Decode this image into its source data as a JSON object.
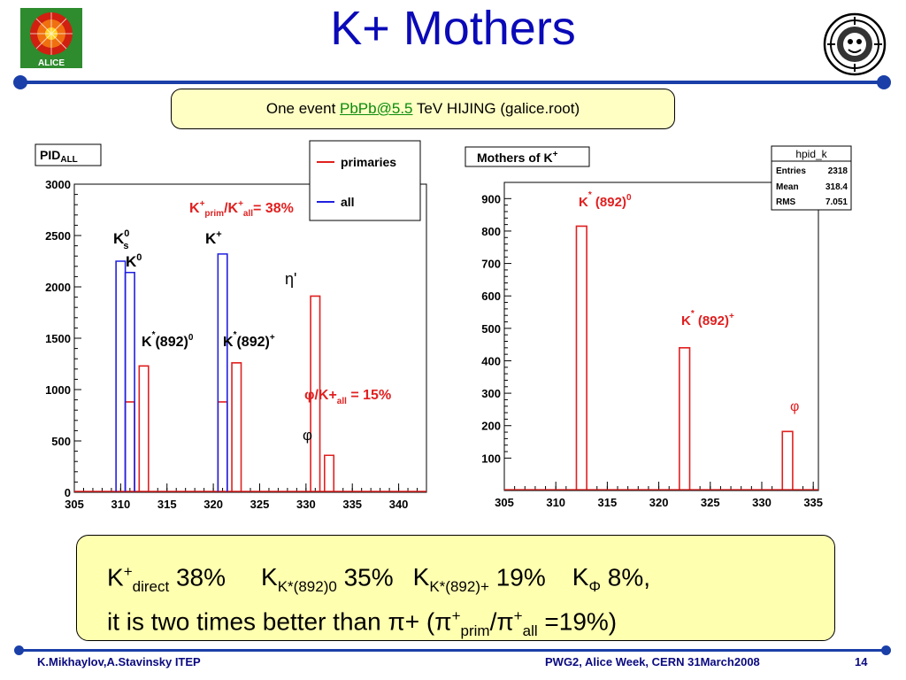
{
  "slide": {
    "title": "K+ Mothers",
    "subtitle_pre": "One event ",
    "subtitle_link": "PbPb@5.5",
    "subtitle_post": " TeV HIJING (galice.root)",
    "logo_left": "ALICE",
    "summary": {
      "l1a": "K",
      "l1b": "+",
      "l1c": "direct",
      "l1d": " 38%",
      "l1e": "K",
      "l1f": "K*(892)0",
      "l1g": " 35%",
      "l1h": "K",
      "l1i": "K*(892)+",
      "l1j": " 19%",
      "l1k": "K",
      "l1l": "Φ",
      "l1m": " 8%,",
      "l2a": "it is two times better than π+ (π",
      "l2b": "+",
      "l2c": "prim",
      "l2d": "/π",
      "l2e": "+",
      "l2f": "all",
      "l2g": " =19%)"
    },
    "footer_left": "K.Mikhaylov,A.Stavinsky ITEP",
    "footer_mid": "PWG2, Alice Week, CERN 31March2008",
    "footer_page": "14",
    "colors": {
      "title": "#0a0ab8",
      "rule": "#1a3fa8",
      "primaries": "#e02020",
      "all": "#2020e0",
      "box": "#ffffc4"
    }
  },
  "chart_data": [
    {
      "type": "bar",
      "title": "PID",
      "title_sub": "ALL",
      "xlim": [
        305,
        343
      ],
      "ylim": [
        0,
        3000
      ],
      "xticks": [
        "305",
        "310",
        "315",
        "320",
        "325",
        "330",
        "335",
        "340"
      ],
      "yticks": [
        "0",
        "500",
        "1000",
        "1500",
        "2000",
        "2500",
        "3000"
      ],
      "legend": {
        "primaries": "primaries",
        "all": "all"
      },
      "series": [
        {
          "name": "primaries",
          "bins": [
            [
              310.5,
              311.5,
              880
            ],
            [
              312,
              313,
              1230
            ],
            [
              320.5,
              321.5,
              880
            ],
            [
              322,
              323,
              1260
            ],
            [
              330.5,
              331.5,
              1910
            ],
            [
              332,
              333,
              360
            ]
          ]
        },
        {
          "name": "all",
          "bins": [
            [
              309.5,
              310.5,
              2250
            ],
            [
              310.5,
              311.5,
              2140
            ],
            [
              320.5,
              321.5,
              2320
            ]
          ]
        }
      ],
      "annotations": {
        "ratio_a": "K",
        "ratio_b": "+",
        "ratio_c": "prim",
        "ratio_d": "/K",
        "ratio_e": "+",
        "ratio_f": "all",
        "ratio_g": "= 38%",
        "ks_a": "K",
        "ks_b": "0",
        "ks_c": "s",
        "k0_a": "K",
        "k0_b": "0",
        "kp_a": "K",
        "kp_b": "+",
        "ks0_a": "K",
        "ks0_b": "*",
        "ks0_c": "(892)",
        "ks0_d": "0",
        "ksp_a": "K",
        "ksp_b": "*",
        "ksp_c": "(892)",
        "ksp_d": "+",
        "eta": "η'",
        "phi_a": "φ/K+",
        "phi_b": "all",
        "phi_c": " = 15%",
        "phi": "φ"
      }
    },
    {
      "type": "bar",
      "title": "Mothers of K",
      "title_sup": "+",
      "xlim": [
        305,
        335.5
      ],
      "ylim": [
        0,
        950
      ],
      "xticks": [
        "305",
        "310",
        "315",
        "320",
        "325",
        "330",
        "335"
      ],
      "yticks": [
        "100",
        "200",
        "300",
        "400",
        "500",
        "600",
        "700",
        "800",
        "900"
      ],
      "stats": {
        "name": "hpid_k",
        "entries_label": "Entries",
        "entries": "2318",
        "mean_label": "Mean",
        "mean": "318.4",
        "rms_label": "RMS",
        "rms": "7.051"
      },
      "series": [
        {
          "name": "",
          "bins": [
            [
              312,
              313,
              815
            ],
            [
              322,
              323,
              440
            ],
            [
              332,
              333,
              182
            ]
          ]
        }
      ],
      "annotations": {
        "k0_a": "K",
        "k0_b": "*",
        "k0_c": " (892)",
        "k0_d": "0",
        "kp_a": "K",
        "kp_b": "*",
        "kp_c": " (892)",
        "kp_d": "+",
        "phi": "φ"
      }
    }
  ]
}
